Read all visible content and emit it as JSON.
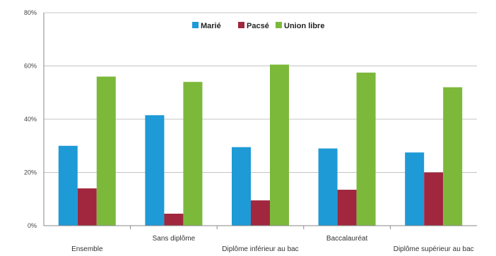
{
  "chart_data": {
    "type": "bar",
    "categories": [
      "Ensemble",
      "Sans diplôme",
      "Diplôme inférieur au bac",
      "Baccalauréat",
      "Diplôme supérieur au bac"
    ],
    "series": [
      {
        "name": "Marié",
        "values": [
          30,
          41.5,
          29.5,
          29,
          27.5
        ],
        "color": "#1e9ad6"
      },
      {
        "name": "Pacsé",
        "values": [
          14,
          4.5,
          9.5,
          13.5,
          20
        ],
        "color": "#a0273e"
      },
      {
        "name": "Union libre",
        "values": [
          56,
          54,
          60.5,
          57.5,
          52
        ],
        "color": "#7cb93b"
      }
    ],
    "yticks": [
      "0%",
      "20%",
      "40%",
      "60%",
      "80%"
    ],
    "ylim": [
      0,
      80
    ],
    "grid": true,
    "legend_position": "top-center"
  }
}
